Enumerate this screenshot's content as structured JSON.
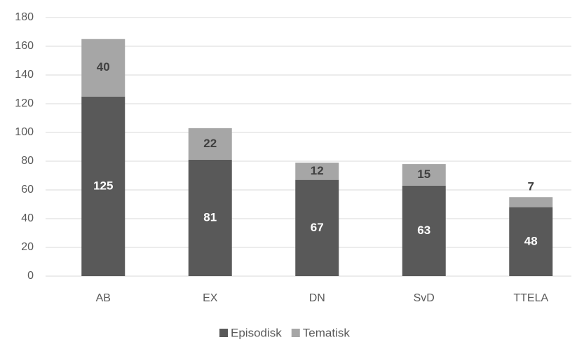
{
  "chart_data": {
    "type": "stacked-bar",
    "categories": [
      "AB",
      "EX",
      "DN",
      "SvD",
      "TTELA"
    ],
    "series": [
      {
        "name": "Episodisk",
        "color": "#595959",
        "values": [
          125,
          81,
          67,
          63,
          48
        ]
      },
      {
        "name": "Tematisk",
        "color": "#a6a6a6",
        "values": [
          40,
          22,
          12,
          15,
          7
        ]
      }
    ],
    "ylim": [
      0,
      180
    ],
    "yticks": [
      0,
      20,
      40,
      60,
      80,
      100,
      120,
      140,
      160,
      180
    ],
    "grid": true,
    "legend": "bottom"
  }
}
